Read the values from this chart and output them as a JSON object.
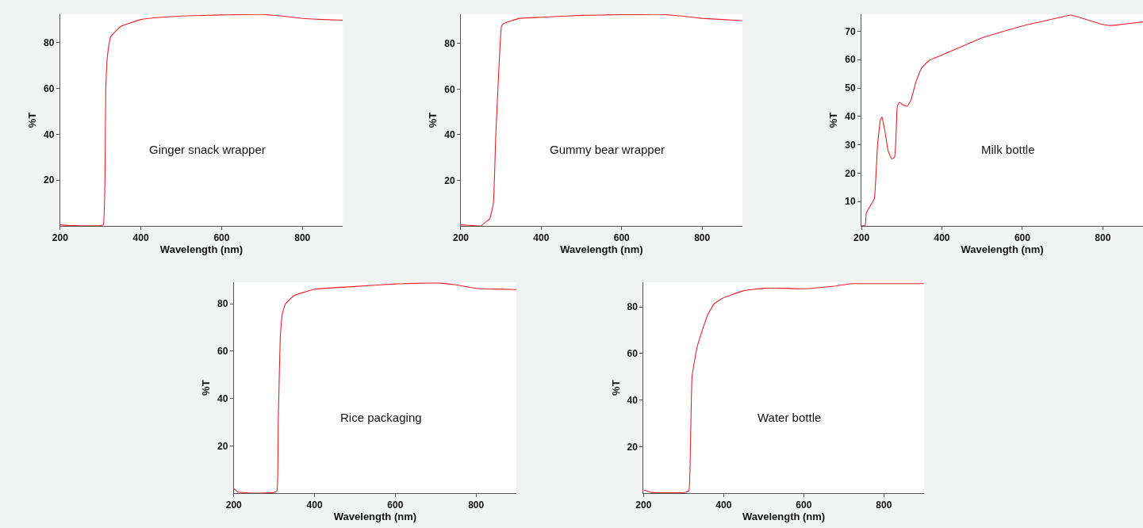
{
  "chart_data": [
    {
      "type": "line",
      "xlabel": "Wavelength (nm)",
      "ylabel": "%T",
      "annotations": [
        "Ginger snack wrapper"
      ],
      "xlim": [
        200,
        900
      ],
      "ylim": [
        0,
        92.3
      ],
      "xticks": [
        200,
        400,
        600,
        800
      ],
      "yticks": [
        20,
        40,
        60,
        80
      ],
      "marker": "none",
      "line_style": "solid",
      "series": [
        {
          "color": "#e8202a",
          "x": [
            200,
            220,
            250,
            300,
            307,
            311,
            313,
            316,
            320,
            325,
            350,
            400,
            450,
            500,
            600,
            700,
            750,
            800,
            850,
            900
          ],
          "values": [
            0.5,
            0.2,
            0.1,
            0.2,
            0.5,
            20,
            60,
            72,
            78,
            82.5,
            87,
            90,
            91,
            91.5,
            92,
            92.2,
            91.5,
            90.5,
            90,
            89.7
          ]
        }
      ]
    },
    {
      "type": "line",
      "xlabel": "Wavelength (nm)",
      "ylabel": "%T",
      "annotations": [
        "Gummy bear wrapper"
      ],
      "xlim": [
        200,
        900
      ],
      "ylim": [
        0,
        92.8
      ],
      "xticks": [
        200,
        400,
        600,
        800
      ],
      "yticks": [
        20,
        40,
        60,
        80
      ],
      "marker": "none",
      "line_style": "solid",
      "series": [
        {
          "color": "#e8202a",
          "x": [
            200,
            220,
            250,
            260,
            272,
            281,
            287,
            295,
            301,
            307,
            346,
            400,
            500,
            600,
            700,
            750,
            800,
            850,
            900
          ],
          "values": [
            0.5,
            0.3,
            0,
            1.5,
            3.2,
            10,
            40,
            70,
            87.5,
            88.8,
            91,
            91.5,
            92.3,
            92.6,
            92.7,
            92,
            91,
            90.5,
            90
          ]
        }
      ]
    },
    {
      "type": "line",
      "xlabel": "Wavelength (nm)",
      "ylabel": "%T",
      "annotations": [
        "Milk bottle"
      ],
      "xlim": [
        200,
        900
      ],
      "ylim": [
        1.4,
        76
      ],
      "xticks": [
        200,
        400,
        600,
        800
      ],
      "yticks": [
        10,
        20,
        30,
        40,
        50,
        60,
        70
      ],
      "marker": "none",
      "line_style": "solid",
      "series": [
        {
          "color": "#e8202a",
          "x": [
            200,
            209,
            212,
            226,
            232,
            240,
            247,
            251,
            258,
            266,
            275,
            282,
            285,
            289,
            294,
            304,
            314,
            323,
            335,
            349,
            369,
            400,
            500,
            600,
            700,
            720,
            758,
            797,
            820,
            850,
            900
          ],
          "values": [
            1.5,
            1.5,
            6,
            9.5,
            11,
            30,
            38.8,
            39.8,
            35,
            28,
            25,
            25.5,
            30,
            43.5,
            45,
            44,
            43.6,
            45.8,
            52,
            57,
            59.8,
            61.6,
            67.7,
            71.9,
            75.1,
            75.7,
            74.2,
            72.5,
            72,
            72.5,
            73.3
          ]
        }
      ]
    },
    {
      "type": "line",
      "xlabel": "Wavelength (nm)",
      "ylabel": "%T",
      "annotations": [
        "Rice packaging"
      ],
      "xlim": [
        200,
        900
      ],
      "ylim": [
        0,
        89
      ],
      "xticks": [
        200,
        400,
        600,
        800
      ],
      "yticks": [
        20,
        40,
        60,
        80
      ],
      "marker": "none",
      "line_style": "solid",
      "series": [
        {
          "color": "#e8202a",
          "x": [
            200,
            210,
            250,
            300,
            307,
            310,
            315,
            320,
            328,
            349,
            400,
            500,
            600,
            700,
            750,
            800,
            850,
            900
          ],
          "values": [
            2,
            0.5,
            0,
            0.3,
            1,
            29,
            65.7,
            75.7,
            80,
            83.4,
            86.2,
            87.3,
            88.4,
            88.8,
            88,
            86.5,
            86.2,
            86
          ]
        }
      ]
    },
    {
      "type": "line",
      "xlabel": "Wavelength (nm)",
      "ylabel": "%T",
      "annotations": [
        "Water bottle"
      ],
      "xlim": [
        200,
        900
      ],
      "ylim": [
        0,
        90.5
      ],
      "xticks": [
        200,
        400,
        600,
        800
      ],
      "yticks": [
        20,
        40,
        60,
        80
      ],
      "marker": "none",
      "line_style": "solid",
      "series": [
        {
          "color": "#e8202a",
          "x": [
            200,
            220,
            300,
            313,
            317,
            321,
            333,
            348,
            361,
            377,
            397,
            450,
            500,
            550,
            600,
            650,
            680,
            720,
            800,
            900
          ],
          "values": [
            1.5,
            0.3,
            0.2,
            1,
            20,
            50,
            62.3,
            70.7,
            77,
            81.5,
            83.7,
            87,
            88,
            88,
            87.8,
            88.5,
            89,
            90,
            90,
            90
          ]
        }
      ]
    }
  ]
}
